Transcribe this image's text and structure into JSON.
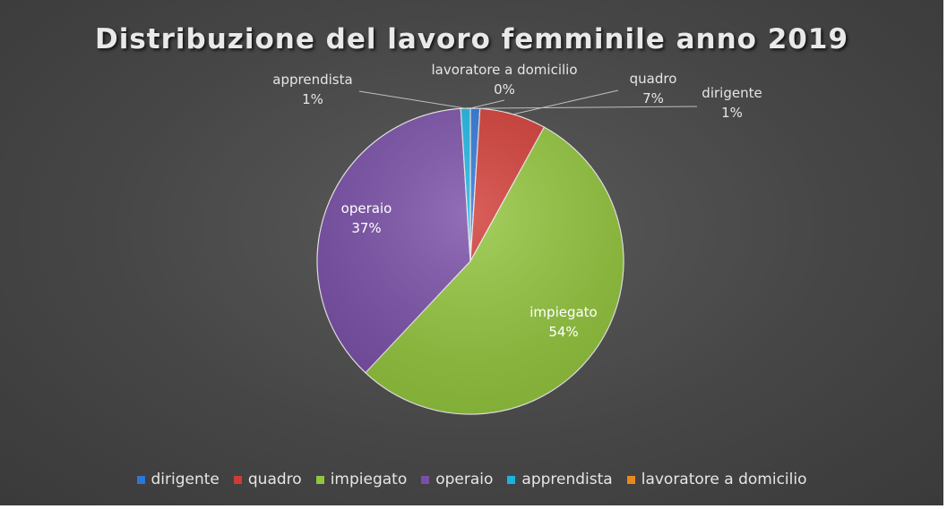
{
  "chart_data": {
    "type": "pie",
    "title": "Distribuzione del lavoro femminile anno 2019",
    "categories": [
      "dirigente",
      "quadro",
      "impiegato",
      "operaio",
      "apprendista",
      "lavoratore a domicilio"
    ],
    "values": [
      1,
      7,
      54,
      37,
      1,
      0
    ],
    "value_labels": [
      "1%",
      "7%",
      "54%",
      "37%",
      "1%",
      "0%"
    ],
    "colors": [
      "#2e75d6",
      "#d13b35",
      "#92c53c",
      "#7a4fa8",
      "#1ab4e0",
      "#e58a1f"
    ],
    "legend_position": "bottom"
  }
}
